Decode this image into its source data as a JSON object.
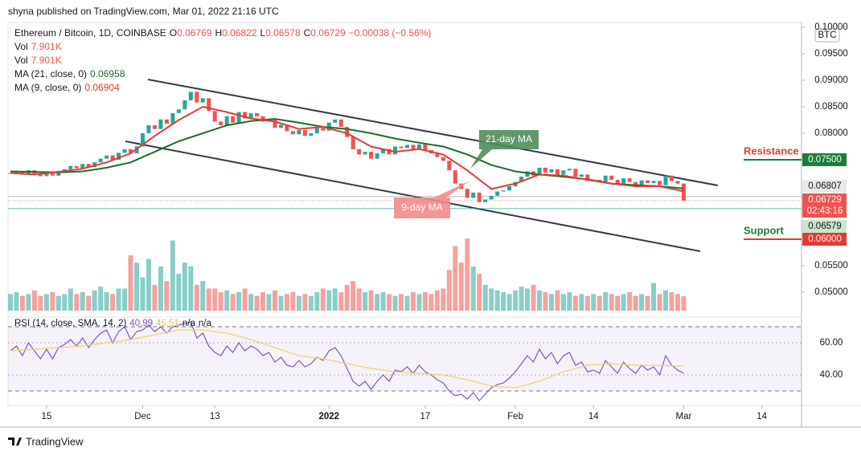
{
  "header": {
    "published": "shyna published on TradingView.com, Mar 01, 2022 21:16 UTC",
    "symbol": "Ethereum / Bitcoin, 1D, COINBASE",
    "ohlc": [
      [
        "O",
        "0.06769"
      ],
      [
        "H",
        "0.06822"
      ],
      [
        "L",
        "0.06578"
      ],
      [
        "C",
        "0.06729"
      ]
    ],
    "change": "−0.00038 (−0.56%)",
    "vol": [
      [
        "Vol",
        "7.901K"
      ],
      [
        "Vol",
        "7.901K"
      ]
    ],
    "ma21": [
      "MA (21, close, 0)",
      "0.06958"
    ],
    "ma9": [
      "MA (9, close, 0)",
      "0.06904"
    ],
    "currency": "BTC"
  },
  "footer": "TradingView",
  "chart_data": {
    "type": "candlestick",
    "xlim": [
      -0.4,
      131.6
    ],
    "xticks": [
      {
        "value": 6,
        "label": "15"
      },
      {
        "value": 22,
        "label": "Dec"
      },
      {
        "value": 34,
        "label": "13"
      },
      {
        "value": 53,
        "label": "2022"
      },
      {
        "value": 69,
        "label": "17"
      },
      {
        "value": 84,
        "label": "Feb"
      },
      {
        "value": 97,
        "label": "14"
      },
      {
        "value": 112,
        "label": "Mar"
      },
      {
        "value": 125,
        "label": "14"
      }
    ],
    "ylim": [
      0.0453,
      0.1009
    ],
    "yticks": [
      {
        "value": 0.05,
        "label": "0.05000"
      },
      {
        "value": 0.055,
        "label": "0.05500"
      },
      {
        "value": 0.08,
        "label": "0.08000"
      },
      {
        "value": 0.085,
        "label": "0.08500"
      },
      {
        "value": 0.09,
        "label": "0.09000"
      },
      {
        "value": 0.095,
        "label": "0.09500"
      },
      {
        "value": 0.1,
        "label": "0.10000"
      }
    ],
    "grid": false,
    "up_color": "#26a69a",
    "down_color": "#ef5350",
    "close": [
      0.0725,
      0.0728,
      0.0722,
      0.073,
      0.0724,
      0.0719,
      0.0726,
      0.072,
      0.0729,
      0.0732,
      0.0738,
      0.0734,
      0.0742,
      0.0736,
      0.0745,
      0.0752,
      0.0758,
      0.075,
      0.0763,
      0.077,
      0.0762,
      0.0775,
      0.08,
      0.0815,
      0.0808,
      0.0826,
      0.0818,
      0.0838,
      0.0845,
      0.0862,
      0.0878,
      0.0858,
      0.0866,
      0.0842,
      0.0822,
      0.0815,
      0.0832,
      0.082,
      0.084,
      0.0828,
      0.0838,
      0.0832,
      0.0822,
      0.0826,
      0.081,
      0.0816,
      0.0804,
      0.0798,
      0.0806,
      0.0795,
      0.08,
      0.081,
      0.0805,
      0.082,
      0.0826,
      0.0812,
      0.0793,
      0.077,
      0.076,
      0.0765,
      0.0752,
      0.0762,
      0.077,
      0.076,
      0.0775,
      0.0772,
      0.0778,
      0.077,
      0.0779,
      0.0768,
      0.0762,
      0.0755,
      0.0748,
      0.073,
      0.0705,
      0.0695,
      0.0678,
      0.0688,
      0.067,
      0.0675,
      0.0682,
      0.069,
      0.0692,
      0.07,
      0.0708,
      0.0718,
      0.0728,
      0.072,
      0.0735,
      0.0726,
      0.0732,
      0.0722,
      0.073,
      0.0733,
      0.0718,
      0.0722,
      0.071,
      0.0712,
      0.0708,
      0.072,
      0.0712,
      0.0705,
      0.0715,
      0.0708,
      0.0703,
      0.0711,
      0.0706,
      0.071,
      0.0702,
      0.072,
      0.071,
      0.0705,
      0.06729
    ],
    "volume_lim": [
      0,
      156
    ],
    "volume": [
      9,
      10,
      8,
      9,
      11,
      8,
      9,
      10,
      8,
      9,
      12,
      9,
      10,
      8,
      11,
      13,
      10,
      9,
      12,
      12,
      30,
      26,
      18,
      28,
      14,
      24,
      16,
      38,
      20,
      26,
      24,
      14,
      16,
      12,
      12,
      10,
      11,
      9,
      10,
      12,
      9,
      8,
      10,
      9,
      11,
      8,
      9,
      10,
      8,
      9,
      8,
      10,
      12,
      11,
      12,
      10,
      14,
      16,
      12,
      10,
      11,
      9,
      10,
      9,
      8,
      9,
      8,
      10,
      9,
      10,
      9,
      11,
      12,
      22,
      35,
      26,
      39,
      24,
      20,
      14,
      12,
      11,
      10,
      9,
      11,
      13,
      12,
      14,
      11,
      10,
      9,
      11,
      9,
      10,
      8,
      9,
      8,
      9,
      8,
      10,
      9,
      8,
      9,
      10,
      8,
      9,
      8,
      15,
      9,
      11,
      10,
      9,
      7.901
    ],
    "series": [
      {
        "name": "MA (21, close, 0)",
        "color": "#1e6b2e",
        "x": [
          0,
          4,
          8,
          12,
          16,
          20,
          24,
          28,
          32,
          36,
          40,
          44,
          48,
          52,
          56,
          60,
          64,
          68,
          72,
          76,
          80,
          84,
          88,
          92,
          96,
          100,
          104,
          108,
          112
        ],
        "values": [
          0.0728,
          0.0727,
          0.0726,
          0.0728,
          0.0735,
          0.0745,
          0.0765,
          0.0785,
          0.08,
          0.0815,
          0.0823,
          0.0827,
          0.082,
          0.0812,
          0.0808,
          0.08,
          0.079,
          0.0782,
          0.0775,
          0.076,
          0.074,
          0.0728,
          0.0722,
          0.0718,
          0.0713,
          0.0705,
          0.0702,
          0.07,
          0.06958
        ]
      },
      {
        "name": "MA (9, close, 0)",
        "color": "#e53935",
        "x": [
          0,
          4,
          8,
          12,
          16,
          20,
          24,
          28,
          32,
          36,
          40,
          44,
          48,
          52,
          56,
          60,
          64,
          68,
          72,
          76,
          80,
          84,
          88,
          92,
          96,
          100,
          104,
          108,
          112
        ],
        "values": [
          0.0725,
          0.0722,
          0.0727,
          0.0733,
          0.0745,
          0.0762,
          0.0795,
          0.0825,
          0.085,
          0.084,
          0.0828,
          0.0822,
          0.0808,
          0.0812,
          0.08,
          0.0775,
          0.0765,
          0.077,
          0.076,
          0.073,
          0.0695,
          0.0705,
          0.0722,
          0.072,
          0.0712,
          0.0705,
          0.07,
          0.07,
          0.06904
        ]
      }
    ],
    "price_labels": [
      {
        "value": 0.06807,
        "label": "0.06807"
      },
      {
        "value": 0.06729,
        "label": "0.06729"
      },
      {
        "value": 0.06579,
        "label": "0.06579"
      }
    ],
    "countdown": "02:43:16",
    "levels": [
      {
        "name": "Resistance",
        "value": 0.075,
        "label": "0.07500"
      },
      {
        "name": "Support",
        "value": 0.06,
        "label": "0.06000"
      }
    ],
    "annotations": [
      "21-day MA",
      "9-day MA"
    ],
    "rsi": {
      "title": "RSI (14, close, SMA, 14, 2)",
      "readouts": [
        "40.99",
        "45.51",
        "n/a",
        "n/a"
      ],
      "ylim": [
        21,
        76
      ],
      "yticks": [
        {
          "value": 40,
          "label": "40.00"
        },
        {
          "value": 60,
          "label": "60.00"
        }
      ],
      "bands": [
        30,
        70
      ],
      "color": "#7e57c2",
      "values": [
        55,
        58,
        52,
        60,
        55,
        50,
        56,
        50,
        57,
        59,
        62,
        58,
        63,
        57,
        62,
        66,
        68,
        60,
        67,
        70,
        62,
        67,
        68,
        71,
        67,
        70,
        66,
        70,
        71,
        72,
        73,
        63,
        66,
        58,
        54,
        52,
        58,
        54,
        60,
        55,
        58,
        56,
        52,
        54,
        48,
        51,
        46,
        45,
        49,
        45,
        47,
        51,
        49,
        55,
        57,
        52,
        44,
        36,
        33,
        36,
        31,
        36,
        40,
        36,
        43,
        42,
        45,
        41,
        46,
        42,
        40,
        37,
        35,
        30,
        27,
        28,
        25,
        29,
        24,
        28,
        32,
        34,
        35,
        38,
        42,
        47,
        52,
        48,
        56,
        50,
        54,
        47,
        52,
        54,
        46,
        48,
        42,
        43,
        41,
        49,
        45,
        41,
        48,
        44,
        41,
        46,
        43,
        45,
        40,
        52,
        46,
        43,
        40.99
      ],
      "sma_color": "#f2d16b",
      "sma_x": [
        0,
        4,
        8,
        12,
        16,
        20,
        24,
        28,
        32,
        36,
        40,
        44,
        48,
        52,
        56,
        60,
        64,
        68,
        72,
        76,
        80,
        84,
        88,
        92,
        96,
        100,
        104,
        108,
        112
      ],
      "sma": [
        55,
        56,
        57,
        58,
        60,
        62,
        65,
        68,
        68,
        66,
        62,
        57,
        52,
        50,
        47,
        44,
        42,
        41,
        40,
        37,
        33,
        32,
        36,
        42,
        46,
        47,
        46,
        46,
        45.51
      ]
    }
  }
}
